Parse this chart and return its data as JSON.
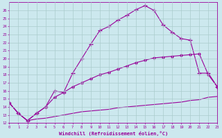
{
  "xlabel": "Windchill (Refroidissement éolien,°C)",
  "bg_color": "#cce8ee",
  "line_color": "#990099",
  "grid_color": "#aacccc",
  "xmin": 0,
  "xmax": 23,
  "ymin": 12,
  "ymax": 27,
  "curve1_x": [
    0,
    1,
    2,
    3,
    4,
    5,
    6,
    7,
    8,
    9,
    10,
    11,
    12,
    13,
    14,
    15,
    16,
    17,
    18,
    19,
    20,
    21,
    22,
    23
  ],
  "curve1_y": [
    14.5,
    13.2,
    12.3,
    13.2,
    14.0,
    16.0,
    15.8,
    18.2,
    20.0,
    21.8,
    23.5,
    24.0,
    24.8,
    25.4,
    26.1,
    26.6,
    26.0,
    24.2,
    23.3,
    22.5,
    22.3,
    18.2,
    18.2,
    16.5
  ],
  "curve2_x": [
    0,
    1,
    2,
    3,
    4,
    5,
    6,
    7,
    8,
    9,
    10,
    11,
    12,
    13,
    14,
    15,
    16,
    17,
    18,
    19,
    20,
    21,
    22,
    23
  ],
  "curve2_y": [
    14.5,
    13.2,
    12.3,
    13.2,
    14.0,
    15.2,
    15.8,
    16.5,
    17.0,
    17.5,
    18.0,
    18.3,
    18.7,
    19.1,
    19.5,
    19.8,
    20.1,
    20.2,
    20.3,
    20.4,
    20.5,
    20.6,
    18.0,
    16.5
  ],
  "curve3_x": [
    0,
    1,
    2,
    3,
    4,
    5,
    6,
    7,
    8,
    9,
    10,
    11,
    12,
    13,
    14,
    15,
    16,
    17,
    18,
    19,
    20,
    21,
    22,
    23
  ],
  "curve3_y": [
    14.5,
    13.2,
    12.3,
    12.5,
    12.6,
    12.8,
    13.0,
    13.2,
    13.4,
    13.5,
    13.6,
    13.7,
    13.9,
    14.0,
    14.1,
    14.2,
    14.3,
    14.4,
    14.5,
    14.6,
    14.8,
    14.9,
    15.2,
    15.3
  ]
}
